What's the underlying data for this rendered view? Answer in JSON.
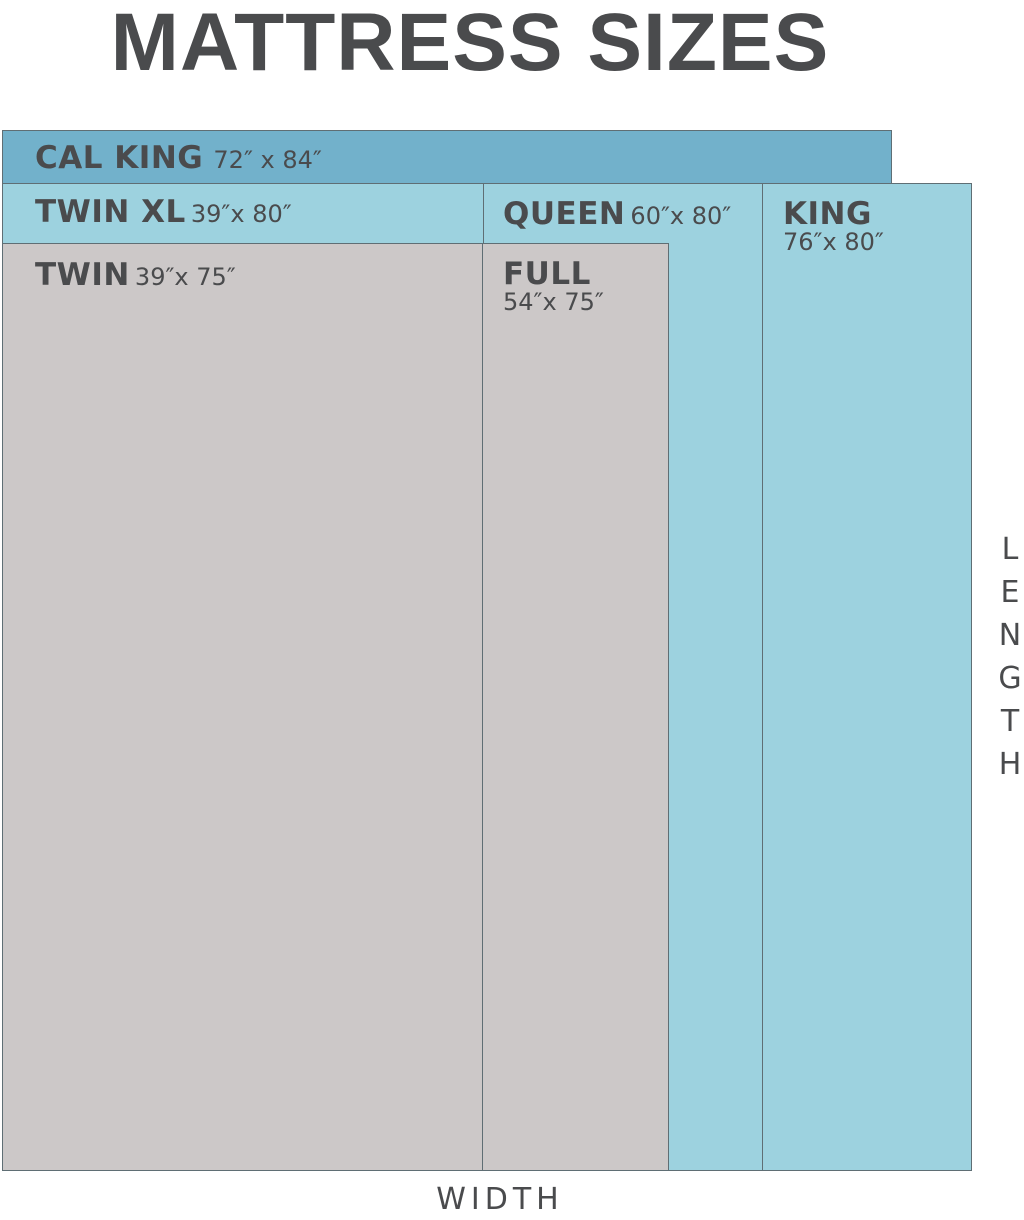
{
  "title": "MATTRESS SIZES",
  "colors": {
    "cal_king": "#72b1cb",
    "light_blue": "#9dd2df",
    "grey": "#ccc8c8",
    "border": "#5f6e74",
    "text": "#4a4b4d"
  },
  "mattresses": {
    "cal_king": {
      "name": "CAL KING",
      "dims": "72″ x 84″"
    },
    "twin_xl": {
      "name": "TWIN XL",
      "dims": "39″x 80″"
    },
    "twin": {
      "name": "TWIN",
      "dims": "39″x 75″"
    },
    "queen": {
      "name": "QUEEN",
      "dims": "60″x 80″"
    },
    "full": {
      "name": "FULL",
      "dims": "54″x 75″"
    },
    "king": {
      "name": "KING",
      "dims": "76″x 80″"
    }
  },
  "axes": {
    "width": "WIDTH",
    "length": [
      "L",
      "E",
      "N",
      "G",
      "T",
      "H"
    ]
  }
}
